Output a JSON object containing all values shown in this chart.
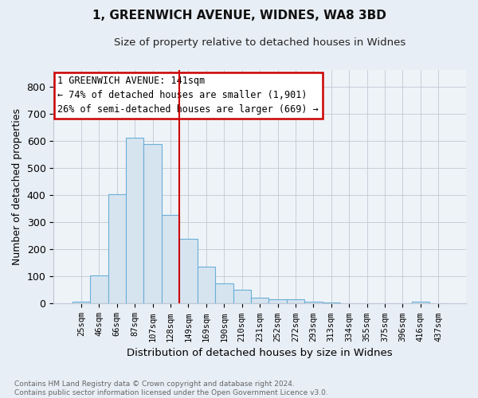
{
  "title1": "1, GREENWICH AVENUE, WIDNES, WA8 3BD",
  "title2": "Size of property relative to detached houses in Widnes",
  "xlabel": "Distribution of detached houses by size in Widnes",
  "ylabel": "Number of detached properties",
  "categories": [
    "25sqm",
    "46sqm",
    "66sqm",
    "87sqm",
    "107sqm",
    "128sqm",
    "149sqm",
    "169sqm",
    "190sqm",
    "210sqm",
    "231sqm",
    "252sqm",
    "272sqm",
    "293sqm",
    "313sqm",
    "334sqm",
    "355sqm",
    "375sqm",
    "396sqm",
    "416sqm",
    "437sqm"
  ],
  "values": [
    7,
    105,
    402,
    612,
    587,
    328,
    238,
    136,
    76,
    50,
    22,
    15,
    15,
    6,
    4,
    0,
    0,
    0,
    0,
    8,
    0
  ],
  "bar_color": "#d6e4f0",
  "bar_edge_color": "#6aaed6",
  "vline_x_index": 6,
  "vline_color": "#cc0000",
  "annotation_line1": "1 GREENWICH AVENUE: 141sqm",
  "annotation_line2": "← 74% of detached houses are smaller (1,901)",
  "annotation_line3": "26% of semi-detached houses are larger (669) →",
  "annotation_box_color": "#ffffff",
  "annotation_box_edge_color": "#cc0000",
  "yticks": [
    0,
    100,
    200,
    300,
    400,
    500,
    600,
    700,
    800
  ],
  "ylim": [
    0,
    860
  ],
  "footer_line1": "Contains HM Land Registry data © Crown copyright and database right 2024.",
  "footer_line2": "Contains public sector information licensed under the Open Government Licence v3.0.",
  "bg_color": "#e8eef5",
  "plot_bg_color": "#eef3f8"
}
